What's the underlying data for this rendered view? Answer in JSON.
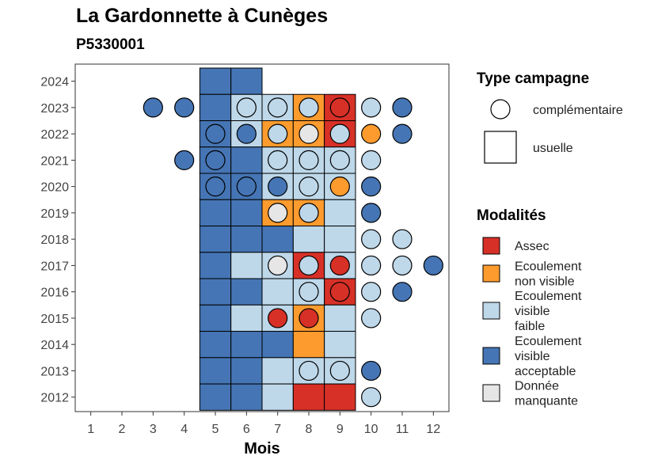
{
  "title": "La Gardonnette à Cunèges",
  "subtitle": "P5330001",
  "chart_data": {
    "type": "heatmap",
    "xlabel": "Mois",
    "ylabel": "",
    "x_ticks": [
      1,
      2,
      3,
      4,
      5,
      6,
      7,
      8,
      9,
      10,
      11,
      12
    ],
    "y_ticks": [
      2012,
      2013,
      2014,
      2015,
      2016,
      2017,
      2018,
      2019,
      2020,
      2021,
      2022,
      2023,
      2024
    ],
    "xlim": [
      0.5,
      12.5
    ],
    "ylim": [
      2011.45,
      2024.65
    ],
    "grid": false,
    "legend_position": "right",
    "colors": {
      "assec": "#d73027",
      "ecoulement_non_visible": "#fd9b2e",
      "ecoulement_visible_faible": "#bed8ea",
      "ecoulement_visible_acceptable": "#4575b4",
      "donnee_manquante": "#e6e6e6"
    },
    "legend_type": {
      "title": "Type campagne",
      "items": [
        {
          "key": "complementaire",
          "label": "complémentaire",
          "shape": "circle"
        },
        {
          "key": "usuelle",
          "label": "usuelle",
          "shape": "square"
        }
      ]
    },
    "legend_modalites": {
      "title": "Modalités",
      "items": [
        {
          "key": "assec",
          "lines": [
            "Assec"
          ]
        },
        {
          "key": "ecoulement_non_visible",
          "lines": [
            "Ecoulement",
            "non visible"
          ]
        },
        {
          "key": "ecoulement_visible_faible",
          "lines": [
            "Ecoulement",
            "visible",
            "faible"
          ]
        },
        {
          "key": "ecoulement_visible_acceptable",
          "lines": [
            "Ecoulement",
            "visible",
            "acceptable"
          ]
        },
        {
          "key": "donnee_manquante",
          "lines": [
            "Donnée",
            "manquante"
          ]
        }
      ]
    },
    "usuelle": [
      {
        "year": 2024,
        "month": 5,
        "value": "ecoulement_visible_acceptable"
      },
      {
        "year": 2024,
        "month": 6,
        "value": "ecoulement_visible_acceptable"
      },
      {
        "year": 2023,
        "month": 5,
        "value": "ecoulement_visible_acceptable"
      },
      {
        "year": 2023,
        "month": 6,
        "value": "ecoulement_visible_faible"
      },
      {
        "year": 2023,
        "month": 7,
        "value": "ecoulement_visible_faible"
      },
      {
        "year": 2023,
        "month": 8,
        "value": "ecoulement_non_visible"
      },
      {
        "year": 2023,
        "month": 9,
        "value": "assec"
      },
      {
        "year": 2022,
        "month": 5,
        "value": "ecoulement_visible_acceptable"
      },
      {
        "year": 2022,
        "month": 6,
        "value": "ecoulement_visible_faible"
      },
      {
        "year": 2022,
        "month": 7,
        "value": "ecoulement_non_visible"
      },
      {
        "year": 2022,
        "month": 8,
        "value": "ecoulement_non_visible"
      },
      {
        "year": 2022,
        "month": 9,
        "value": "assec"
      },
      {
        "year": 2021,
        "month": 5,
        "value": "ecoulement_visible_acceptable"
      },
      {
        "year": 2021,
        "month": 6,
        "value": "ecoulement_visible_acceptable"
      },
      {
        "year": 2021,
        "month": 7,
        "value": "ecoulement_visible_faible"
      },
      {
        "year": 2021,
        "month": 8,
        "value": "ecoulement_visible_faible"
      },
      {
        "year": 2021,
        "month": 9,
        "value": "ecoulement_visible_faible"
      },
      {
        "year": 2020,
        "month": 5,
        "value": "ecoulement_visible_acceptable"
      },
      {
        "year": 2020,
        "month": 6,
        "value": "ecoulement_visible_acceptable"
      },
      {
        "year": 2020,
        "month": 7,
        "value": "ecoulement_visible_faible"
      },
      {
        "year": 2020,
        "month": 8,
        "value": "ecoulement_visible_faible"
      },
      {
        "year": 2020,
        "month": 9,
        "value": "ecoulement_visible_faible"
      },
      {
        "year": 2019,
        "month": 5,
        "value": "ecoulement_visible_acceptable"
      },
      {
        "year": 2019,
        "month": 6,
        "value": "ecoulement_visible_acceptable"
      },
      {
        "year": 2019,
        "month": 7,
        "value": "ecoulement_non_visible"
      },
      {
        "year": 2019,
        "month": 8,
        "value": "ecoulement_non_visible"
      },
      {
        "year": 2019,
        "month": 9,
        "value": "ecoulement_visible_faible"
      },
      {
        "year": 2018,
        "month": 5,
        "value": "ecoulement_visible_acceptable"
      },
      {
        "year": 2018,
        "month": 6,
        "value": "ecoulement_visible_acceptable"
      },
      {
        "year": 2018,
        "month": 7,
        "value": "ecoulement_visible_acceptable"
      },
      {
        "year": 2018,
        "month": 8,
        "value": "ecoulement_visible_faible"
      },
      {
        "year": 2018,
        "month": 9,
        "value": "ecoulement_visible_faible"
      },
      {
        "year": 2017,
        "month": 5,
        "value": "ecoulement_visible_acceptable"
      },
      {
        "year": 2017,
        "month": 6,
        "value": "ecoulement_visible_faible"
      },
      {
        "year": 2017,
        "month": 7,
        "value": "ecoulement_visible_faible"
      },
      {
        "year": 2017,
        "month": 8,
        "value": "assec"
      },
      {
        "year": 2017,
        "month": 9,
        "value": "ecoulement_visible_faible"
      },
      {
        "year": 2016,
        "month": 5,
        "value": "ecoulement_visible_acceptable"
      },
      {
        "year": 2016,
        "month": 6,
        "value": "ecoulement_visible_acceptable"
      },
      {
        "year": 2016,
        "month": 7,
        "value": "ecoulement_visible_faible"
      },
      {
        "year": 2016,
        "month": 8,
        "value": "ecoulement_visible_faible"
      },
      {
        "year": 2016,
        "month": 9,
        "value": "assec"
      },
      {
        "year": 2015,
        "month": 5,
        "value": "ecoulement_visible_acceptable"
      },
      {
        "year": 2015,
        "month": 6,
        "value": "ecoulement_visible_faible"
      },
      {
        "year": 2015,
        "month": 7,
        "value": "ecoulement_visible_faible"
      },
      {
        "year": 2015,
        "month": 8,
        "value": "ecoulement_non_visible"
      },
      {
        "year": 2015,
        "month": 9,
        "value": "ecoulement_visible_faible"
      },
      {
        "year": 2014,
        "month": 5,
        "value": "ecoulement_visible_acceptable"
      },
      {
        "year": 2014,
        "month": 6,
        "value": "ecoulement_visible_acceptable"
      },
      {
        "year": 2014,
        "month": 7,
        "value": "ecoulement_visible_acceptable"
      },
      {
        "year": 2014,
        "month": 8,
        "value": "ecoulement_non_visible"
      },
      {
        "year": 2014,
        "month": 9,
        "value": "ecoulement_visible_faible"
      },
      {
        "year": 2013,
        "month": 5,
        "value": "ecoulement_visible_acceptable"
      },
      {
        "year": 2013,
        "month": 6,
        "value": "ecoulement_visible_acceptable"
      },
      {
        "year": 2013,
        "month": 7,
        "value": "ecoulement_visible_faible"
      },
      {
        "year": 2013,
        "month": 8,
        "value": "ecoulement_visible_faible"
      },
      {
        "year": 2013,
        "month": 9,
        "value": "ecoulement_visible_faible"
      },
      {
        "year": 2012,
        "month": 5,
        "value": "ecoulement_visible_acceptable"
      },
      {
        "year": 2012,
        "month": 6,
        "value": "ecoulement_visible_acceptable"
      },
      {
        "year": 2012,
        "month": 7,
        "value": "ecoulement_visible_faible"
      },
      {
        "year": 2012,
        "month": 8,
        "value": "assec"
      },
      {
        "year": 2012,
        "month": 9,
        "value": "assec"
      }
    ],
    "complementaire": [
      {
        "year": 2023,
        "month": 3,
        "value": "ecoulement_visible_acceptable"
      },
      {
        "year": 2023,
        "month": 4,
        "value": "ecoulement_visible_acceptable"
      },
      {
        "year": 2023,
        "month": 6,
        "value": "ecoulement_visible_faible"
      },
      {
        "year": 2023,
        "month": 7,
        "value": "ecoulement_visible_faible"
      },
      {
        "year": 2023,
        "month": 8,
        "value": "ecoulement_visible_faible"
      },
      {
        "year": 2023,
        "month": 9,
        "value": "assec"
      },
      {
        "year": 2023,
        "month": 10,
        "value": "ecoulement_visible_faible"
      },
      {
        "year": 2023,
        "month": 11,
        "value": "ecoulement_visible_acceptable"
      },
      {
        "year": 2022,
        "month": 5,
        "value": "ecoulement_visible_acceptable"
      },
      {
        "year": 2022,
        "month": 6,
        "value": "ecoulement_visible_acceptable"
      },
      {
        "year": 2022,
        "month": 7,
        "value": "ecoulement_visible_faible"
      },
      {
        "year": 2022,
        "month": 8,
        "value": "donnee_manquante"
      },
      {
        "year": 2022,
        "month": 9,
        "value": "ecoulement_visible_faible"
      },
      {
        "year": 2022,
        "month": 10,
        "value": "ecoulement_non_visible"
      },
      {
        "year": 2022,
        "month": 11,
        "value": "ecoulement_visible_acceptable"
      },
      {
        "year": 2021,
        "month": 4,
        "value": "ecoulement_visible_acceptable"
      },
      {
        "year": 2021,
        "month": 5,
        "value": "ecoulement_visible_acceptable"
      },
      {
        "year": 2021,
        "month": 7,
        "value": "ecoulement_visible_faible"
      },
      {
        "year": 2021,
        "month": 8,
        "value": "ecoulement_visible_faible"
      },
      {
        "year": 2021,
        "month": 9,
        "value": "ecoulement_visible_faible"
      },
      {
        "year": 2021,
        "month": 10,
        "value": "ecoulement_visible_faible"
      },
      {
        "year": 2020,
        "month": 5,
        "value": "ecoulement_visible_acceptable"
      },
      {
        "year": 2020,
        "month": 6,
        "value": "ecoulement_visible_acceptable"
      },
      {
        "year": 2020,
        "month": 7,
        "value": "ecoulement_visible_acceptable"
      },
      {
        "year": 2020,
        "month": 8,
        "value": "ecoulement_visible_faible"
      },
      {
        "year": 2020,
        "month": 9,
        "value": "ecoulement_non_visible"
      },
      {
        "year": 2020,
        "month": 10,
        "value": "ecoulement_visible_acceptable"
      },
      {
        "year": 2019,
        "month": 7,
        "value": "donnee_manquante"
      },
      {
        "year": 2019,
        "month": 8,
        "value": "ecoulement_visible_faible"
      },
      {
        "year": 2019,
        "month": 10,
        "value": "ecoulement_visible_acceptable"
      },
      {
        "year": 2018,
        "month": 10,
        "value": "ecoulement_visible_faible"
      },
      {
        "year": 2018,
        "month": 11,
        "value": "ecoulement_visible_faible"
      },
      {
        "year": 2017,
        "month": 7,
        "value": "donnee_manquante"
      },
      {
        "year": 2017,
        "month": 8,
        "value": "ecoulement_visible_faible"
      },
      {
        "year": 2017,
        "month": 9,
        "value": "assec"
      },
      {
        "year": 2017,
        "month": 10,
        "value": "ecoulement_visible_faible"
      },
      {
        "year": 2017,
        "month": 11,
        "value": "ecoulement_visible_faible"
      },
      {
        "year": 2017,
        "month": 12,
        "value": "ecoulement_visible_acceptable"
      },
      {
        "year": 2016,
        "month": 8,
        "value": "ecoulement_visible_faible"
      },
      {
        "year": 2016,
        "month": 9,
        "value": "assec"
      },
      {
        "year": 2016,
        "month": 10,
        "value": "ecoulement_visible_faible"
      },
      {
        "year": 2016,
        "month": 11,
        "value": "ecoulement_visible_acceptable"
      },
      {
        "year": 2015,
        "month": 7,
        "value": "assec"
      },
      {
        "year": 2015,
        "month": 8,
        "value": "assec"
      },
      {
        "year": 2015,
        "month": 10,
        "value": "ecoulement_visible_faible"
      },
      {
        "year": 2013,
        "month": 8,
        "value": "ecoulement_visible_faible"
      },
      {
        "year": 2013,
        "month": 9,
        "value": "ecoulement_visible_faible"
      },
      {
        "year": 2013,
        "month": 10,
        "value": "ecoulement_visible_acceptable"
      },
      {
        "year": 2012,
        "month": 10,
        "value": "ecoulement_visible_faible"
      }
    ]
  }
}
